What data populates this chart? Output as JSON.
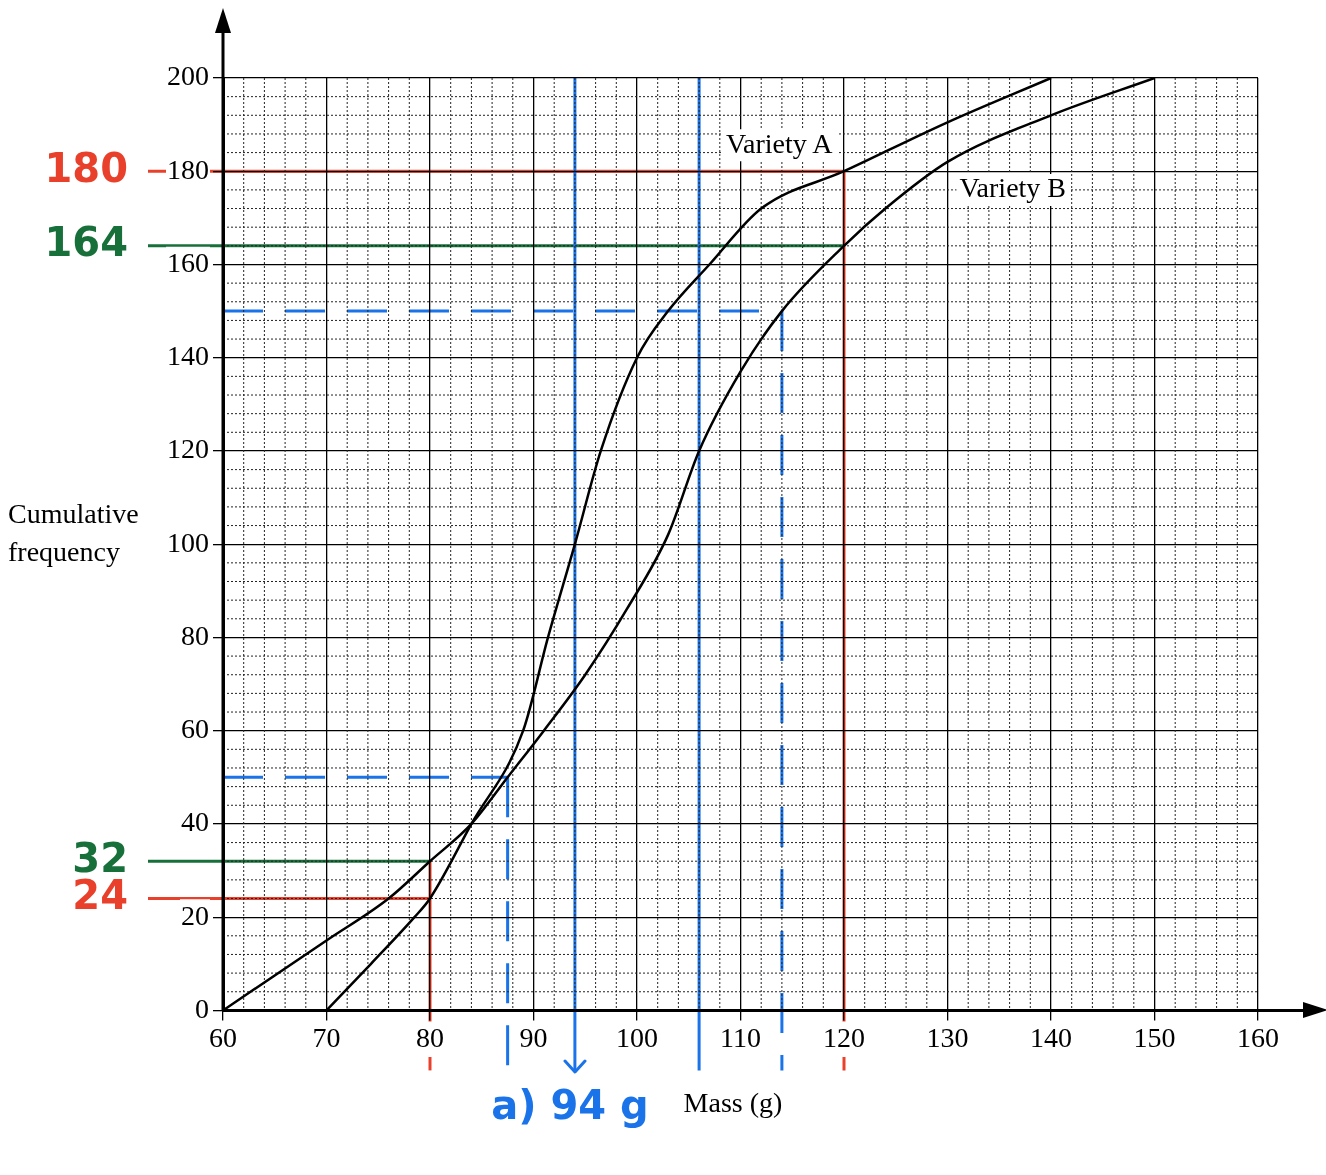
{
  "chart_data": {
    "type": "line",
    "xlabel": "Mass (g)",
    "ylabel": "Cumulative frequency",
    "series": [
      {
        "name": "Variety A",
        "color": "#000000",
        "x": [
          70,
          74.3,
          78.5,
          80,
          84,
          89,
          91.4,
          94,
          96.5,
          100,
          103,
          107,
          112,
          120,
          130,
          140
        ],
        "values": [
          0,
          10,
          20,
          24,
          40,
          60,
          80,
          100,
          120,
          140,
          150,
          160,
          172,
          180,
          190.5,
          200
        ]
      },
      {
        "name": "Variety B",
        "color": "#000000",
        "x": [
          60,
          70,
          76,
          80,
          84,
          87.5,
          91,
          95,
          99,
          103,
          106,
          110,
          114,
          120,
          124,
          130,
          140,
          150
        ],
        "values": [
          0,
          15,
          24,
          32,
          40,
          50,
          60,
          72,
          86,
          102,
          120,
          137,
          150,
          164,
          172,
          182,
          192,
          200
        ]
      }
    ],
    "xlim": [
      60,
      160
    ],
    "xticks": [
      60,
      70,
      80,
      90,
      100,
      110,
      120,
      130,
      140,
      150,
      160
    ],
    "ylim": [
      0,
      200
    ],
    "yticks": [
      0,
      20,
      40,
      60,
      80,
      100,
      120,
      140,
      160,
      180,
      200
    ],
    "grid": true,
    "legend": false,
    "marker": "none",
    "line_style": "solid",
    "ref_lines": [
      {
        "axis": "y",
        "value": 180,
        "label": "180",
        "color": "#e8402a"
      },
      {
        "axis": "x",
        "value": 120,
        "color": "#e8402a"
      },
      {
        "axis": "y",
        "value": 164,
        "label": "164",
        "color": "#17703a"
      },
      {
        "axis": "y",
        "value": 32,
        "label": "32",
        "color": "#17703a"
      },
      {
        "axis": "y",
        "value": 24,
        "label": "24",
        "color": "#e8402a"
      },
      {
        "axis": "x",
        "value": 80,
        "color": "#e8402a"
      },
      {
        "axis": "y",
        "value": 150,
        "color": "#1a73e8",
        "line_style": "dashed"
      },
      {
        "axis": "y",
        "value": 50,
        "color": "#1a73e8",
        "line_style": "dashed"
      },
      {
        "axis": "x",
        "value": 114,
        "color": "#1a73e8",
        "line_style": "dashed"
      },
      {
        "axis": "x",
        "value": 87.5,
        "color": "#1a73e8",
        "line_style": "dashed"
      },
      {
        "axis": "x",
        "value": 94,
        "label": "a) 94 g",
        "color": "#1a73e8"
      },
      {
        "axis": "x",
        "value": 106,
        "color": "#1a73e8"
      }
    ]
  }
}
